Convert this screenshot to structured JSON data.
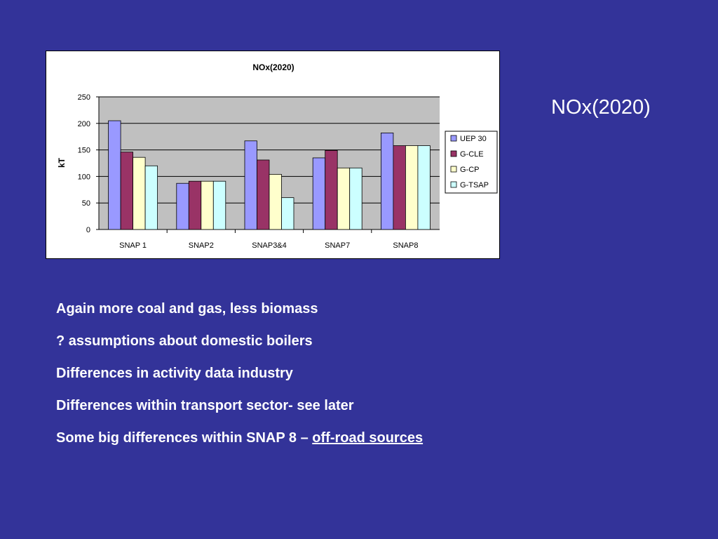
{
  "slide": {
    "title": "NOx(2020)",
    "bullets": [
      "Again more coal and gas, less biomass",
      "? assumptions about domestic boilers",
      "Differences in activity data industry",
      "Differences within transport sector- see later"
    ],
    "last_bullet_prefix": "Some big differences within SNAP 8 – ",
    "last_bullet_link": "off-road sources",
    "background_color": "#333399"
  },
  "chart_data": {
    "type": "bar",
    "title": "NOx(2020)",
    "xlabel": "",
    "ylabel": "kT",
    "categories": [
      "SNAP 1",
      "SNAP2",
      "SNAP3&4",
      "SNAP7",
      "SNAP8"
    ],
    "ylim": [
      0,
      250
    ],
    "yticks": [
      0,
      50,
      100,
      150,
      200,
      250
    ],
    "grid": true,
    "legend_position": "right",
    "plot_background": "#c0c0c0",
    "series": [
      {
        "name": "UEP 30",
        "color": "#9999ff",
        "values": [
          205,
          87,
          167,
          135,
          182
        ]
      },
      {
        "name": "G-CLE",
        "color": "#993366",
        "values": [
          146,
          91,
          131,
          149,
          158
        ]
      },
      {
        "name": "G-CP",
        "color": "#ffffcc",
        "values": [
          136,
          91,
          104,
          116,
          158
        ]
      },
      {
        "name": "G-TSAP",
        "color": "#ccffff",
        "values": [
          120,
          91,
          60,
          116,
          158
        ]
      }
    ]
  }
}
